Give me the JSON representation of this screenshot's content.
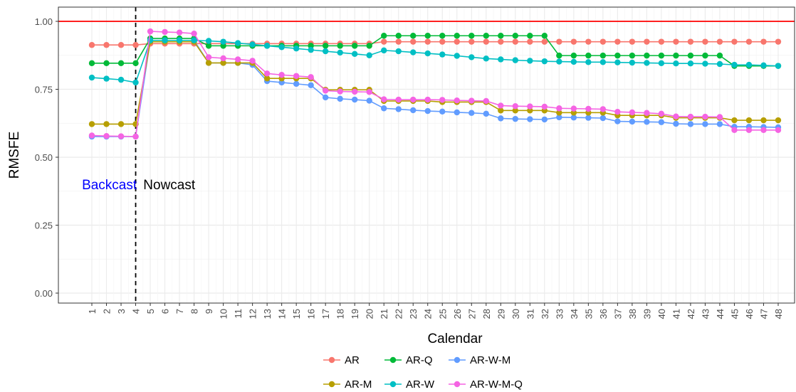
{
  "chart_data": {
    "type": "line",
    "xlabel": "Calendar",
    "ylabel": "RMSFE",
    "x": [
      1,
      2,
      3,
      4,
      5,
      6,
      7,
      8,
      9,
      10,
      11,
      12,
      13,
      14,
      15,
      16,
      17,
      18,
      19,
      20,
      21,
      22,
      23,
      24,
      25,
      26,
      27,
      28,
      29,
      30,
      31,
      32,
      33,
      34,
      35,
      36,
      37,
      38,
      39,
      40,
      41,
      42,
      43,
      44,
      45,
      46,
      47,
      48
    ],
    "xlim": [
      0,
      48.5
    ],
    "ylim": [
      -0.05,
      1.03
    ],
    "yticks": [
      0.0,
      0.25,
      0.5,
      0.75,
      1.0
    ],
    "ytick_labels": [
      "0.00",
      "0.25",
      "0.50",
      "0.75",
      "1.00"
    ],
    "grid": true,
    "reference_line": {
      "y": 1.0,
      "color": "#ff0000"
    },
    "split_line": {
      "x": 4,
      "style": "dashed",
      "color": "#000000"
    },
    "annotations": [
      {
        "text": "Backcast",
        "color": "#0000ff",
        "x": 2.2,
        "y": 0.4
      },
      {
        "text": "Nowcast",
        "color": "#000000",
        "x": 6.3,
        "y": 0.4
      }
    ],
    "legend_position": "bottom",
    "series": [
      {
        "name": "AR",
        "color": "#f8766d",
        "values": [
          0.913,
          0.913,
          0.913,
          0.913,
          0.918,
          0.918,
          0.918,
          0.918,
          0.918,
          0.918,
          0.918,
          0.918,
          0.918,
          0.918,
          0.918,
          0.918,
          0.918,
          0.918,
          0.918,
          0.918,
          0.925,
          0.925,
          0.925,
          0.925,
          0.925,
          0.925,
          0.925,
          0.925,
          0.925,
          0.925,
          0.925,
          0.925,
          0.925,
          0.925,
          0.925,
          0.925,
          0.925,
          0.925,
          0.925,
          0.925,
          0.925,
          0.925,
          0.925,
          0.925,
          0.925,
          0.925,
          0.925,
          0.925
        ]
      },
      {
        "name": "AR-Q",
        "color": "#00ba38",
        "values": [
          0.846,
          0.846,
          0.846,
          0.846,
          0.937,
          0.937,
          0.937,
          0.937,
          0.91,
          0.91,
          0.91,
          0.91,
          0.91,
          0.91,
          0.91,
          0.91,
          0.91,
          0.91,
          0.91,
          0.91,
          0.947,
          0.947,
          0.947,
          0.947,
          0.947,
          0.947,
          0.947,
          0.947,
          0.947,
          0.947,
          0.947,
          0.947,
          0.874,
          0.874,
          0.874,
          0.874,
          0.874,
          0.874,
          0.874,
          0.874,
          0.874,
          0.874,
          0.874,
          0.874,
          0.836,
          0.836,
          0.836,
          0.836
        ]
      },
      {
        "name": "AR-W-M",
        "color": "#619cff",
        "values": [
          0.576,
          0.576,
          0.576,
          0.576,
          0.93,
          0.93,
          0.93,
          0.93,
          0.847,
          0.847,
          0.847,
          0.84,
          0.78,
          0.775,
          0.77,
          0.765,
          0.72,
          0.715,
          0.712,
          0.708,
          0.68,
          0.677,
          0.673,
          0.67,
          0.668,
          0.665,
          0.663,
          0.66,
          0.643,
          0.641,
          0.64,
          0.639,
          0.647,
          0.646,
          0.645,
          0.644,
          0.632,
          0.631,
          0.63,
          0.629,
          0.623,
          0.622,
          0.622,
          0.622,
          0.612,
          0.612,
          0.611,
          0.61
        ]
      },
      {
        "name": "AR-M",
        "color": "#b79f00",
        "values": [
          0.622,
          0.622,
          0.622,
          0.622,
          0.925,
          0.925,
          0.925,
          0.925,
          0.847,
          0.847,
          0.847,
          0.847,
          0.79,
          0.79,
          0.79,
          0.79,
          0.748,
          0.748,
          0.748,
          0.748,
          0.707,
          0.707,
          0.707,
          0.707,
          0.703,
          0.703,
          0.703,
          0.703,
          0.672,
          0.672,
          0.672,
          0.672,
          0.664,
          0.664,
          0.664,
          0.664,
          0.654,
          0.654,
          0.654,
          0.654,
          0.645,
          0.645,
          0.645,
          0.645,
          0.636,
          0.636,
          0.636,
          0.636
        ]
      },
      {
        "name": "AR-W",
        "color": "#00bfc4",
        "values": [
          0.793,
          0.789,
          0.785,
          0.775,
          0.93,
          0.93,
          0.93,
          0.93,
          0.928,
          0.925,
          0.92,
          0.915,
          0.91,
          0.905,
          0.9,
          0.895,
          0.89,
          0.885,
          0.88,
          0.875,
          0.893,
          0.89,
          0.886,
          0.882,
          0.878,
          0.873,
          0.868,
          0.863,
          0.86,
          0.857,
          0.855,
          0.853,
          0.852,
          0.851,
          0.85,
          0.85,
          0.849,
          0.848,
          0.847,
          0.846,
          0.845,
          0.845,
          0.844,
          0.843,
          0.84,
          0.84,
          0.838,
          0.836
        ]
      },
      {
        "name": "AR-W-M-Q",
        "color": "#f564e3",
        "values": [
          0.58,
          0.578,
          0.577,
          0.576,
          0.963,
          0.961,
          0.959,
          0.955,
          0.868,
          0.864,
          0.86,
          0.855,
          0.808,
          0.803,
          0.799,
          0.795,
          0.745,
          0.742,
          0.741,
          0.74,
          0.713,
          0.712,
          0.712,
          0.712,
          0.711,
          0.709,
          0.708,
          0.707,
          0.69,
          0.688,
          0.687,
          0.686,
          0.68,
          0.679,
          0.678,
          0.677,
          0.667,
          0.665,
          0.663,
          0.66,
          0.65,
          0.649,
          0.649,
          0.648,
          0.6,
          0.6,
          0.6,
          0.6
        ]
      }
    ],
    "legend_rows": [
      [
        "AR",
        "AR-Q",
        "AR-W-M"
      ],
      [
        "AR-M",
        "AR-W",
        "AR-W-M-Q"
      ]
    ]
  }
}
